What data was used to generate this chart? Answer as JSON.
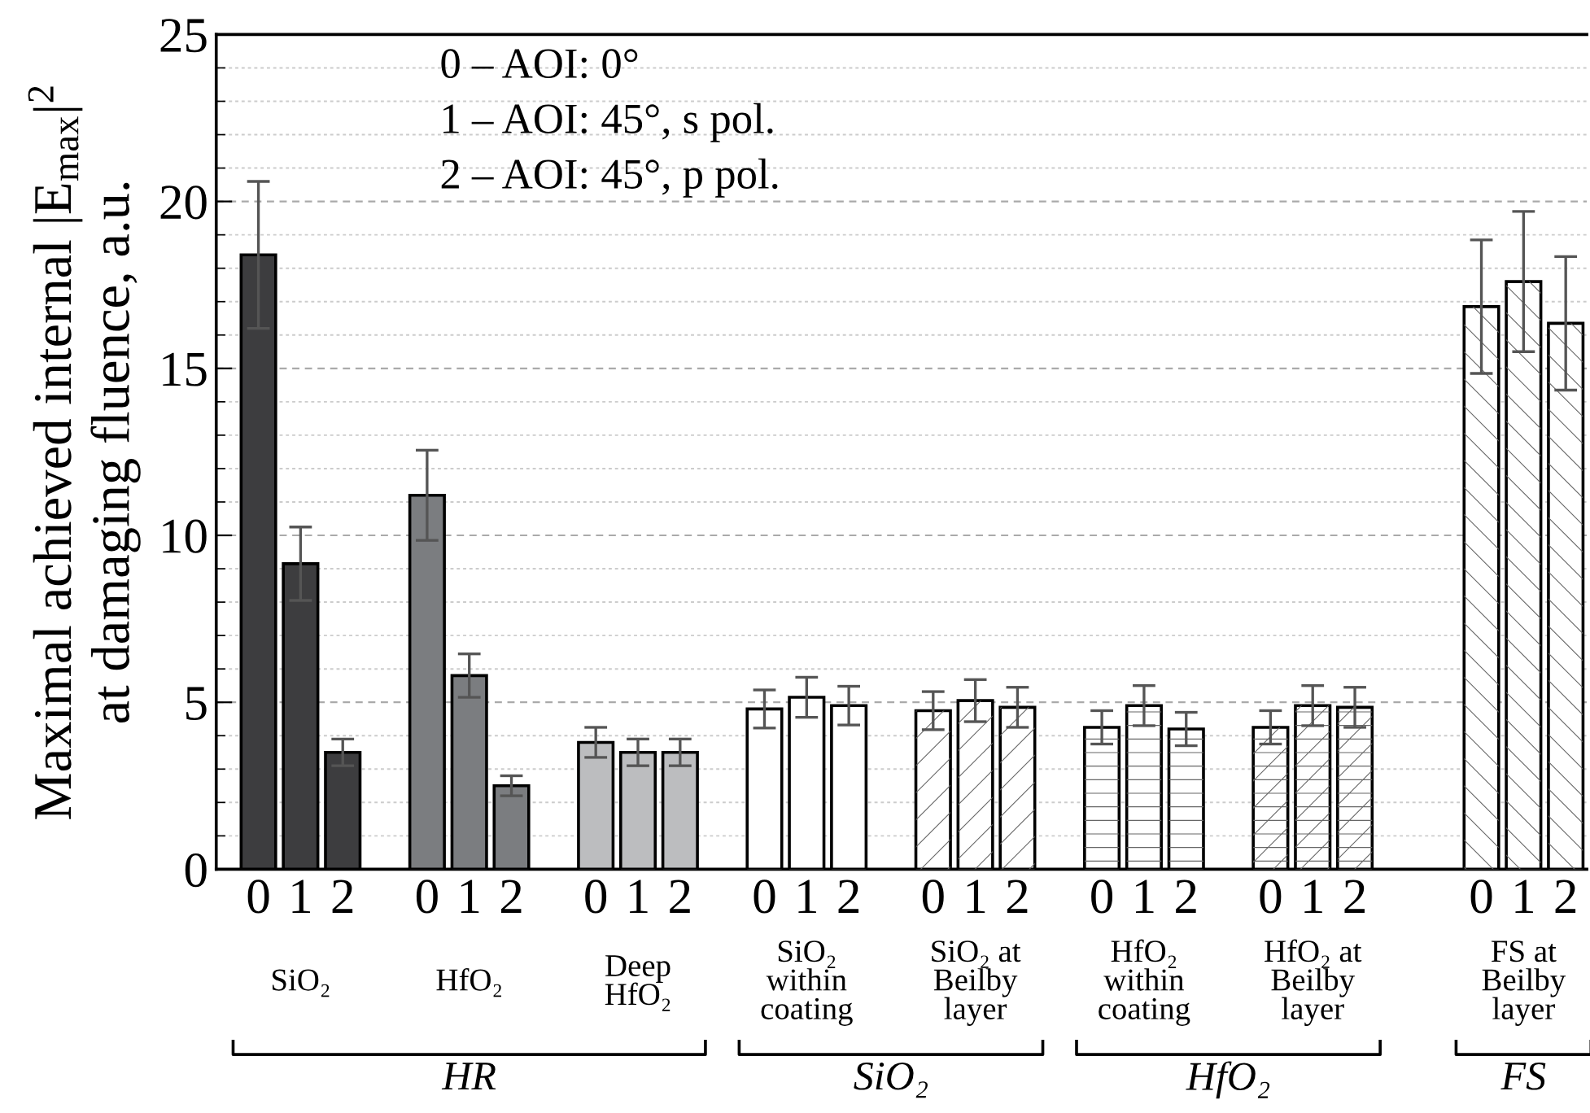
{
  "chart_data": {
    "type": "bar",
    "ylabel": "Maximal achieved internal |E$_{max}$|$^{2}$\nat damaging fluence, a.u.",
    "categories": [
      "0",
      "1",
      "2",
      null,
      "0",
      "1",
      "2",
      null,
      "0",
      "1",
      "2",
      null,
      "0",
      "1",
      "2",
      null,
      "0",
      "1",
      "2",
      null,
      "0",
      "1",
      "2",
      null,
      "0",
      "1",
      "2",
      null,
      null,
      "0",
      "1",
      "2"
    ],
    "values": [
      18.4,
      9.15,
      3.5,
      null,
      11.2,
      5.8,
      2.5,
      null,
      3.8,
      3.5,
      3.5,
      null,
      4.8,
      5.15,
      4.9,
      null,
      4.75,
      5.05,
      4.85,
      null,
      4.25,
      4.9,
      4.2,
      null,
      4.25,
      4.9,
      4.85,
      null,
      null,
      16.85,
      17.6,
      16.35
    ],
    "errors": [
      2.2,
      1.1,
      0.4,
      null,
      1.35,
      0.65,
      0.3,
      null,
      0.45,
      0.4,
      0.4,
      null,
      0.57,
      0.6,
      0.58,
      null,
      0.57,
      0.63,
      0.6,
      null,
      0.5,
      0.6,
      0.5,
      null,
      0.5,
      0.6,
      0.6,
      null,
      null,
      2.0,
      2.1,
      2.0
    ],
    "colors": [
      "#3d3d3f",
      "#3d3d3f",
      "#3d3d3f",
      null,
      "#7b7d80",
      "#7b7d80",
      "#7b7d80",
      null,
      "#bcbdbf",
      "#bcbdbf",
      "#bcbdbf",
      null,
      "#ffffff",
      "#ffffff",
      "#ffffff",
      null,
      "#ffffff",
      "#ffffff",
      "#ffffff",
      null,
      "#ffffff",
      "#ffffff",
      "#ffffff",
      null,
      "#ffffff",
      "#ffffff",
      "#ffffff",
      null,
      null,
      "#ffffff",
      "#ffffff",
      "#ffffff"
    ],
    "ylim": [
      0,
      25
    ],
    "yticks": [
      0,
      5,
      10,
      15,
      20,
      25
    ],
    "grid": "y",
    "annotations": [
      "0 – AOI: 0°\n1 – AOI: 45°, s pol.\n2 – AOI: 45°, p pol.",
      "SiO₂",
      "HfO₂",
      "Deep\nHfO₂",
      "SiO₂\nwithin\ncoating",
      "SiO₂ at\nBeilby\nlayer",
      "HfO₂\nwithin\ncoating",
      "HfO₂ at\nBeilby\nlayer",
      "FS at\nBeilby\nlayer",
      "HR",
      "SiO₂",
      "HfO₂",
      "FS"
    ]
  }
}
